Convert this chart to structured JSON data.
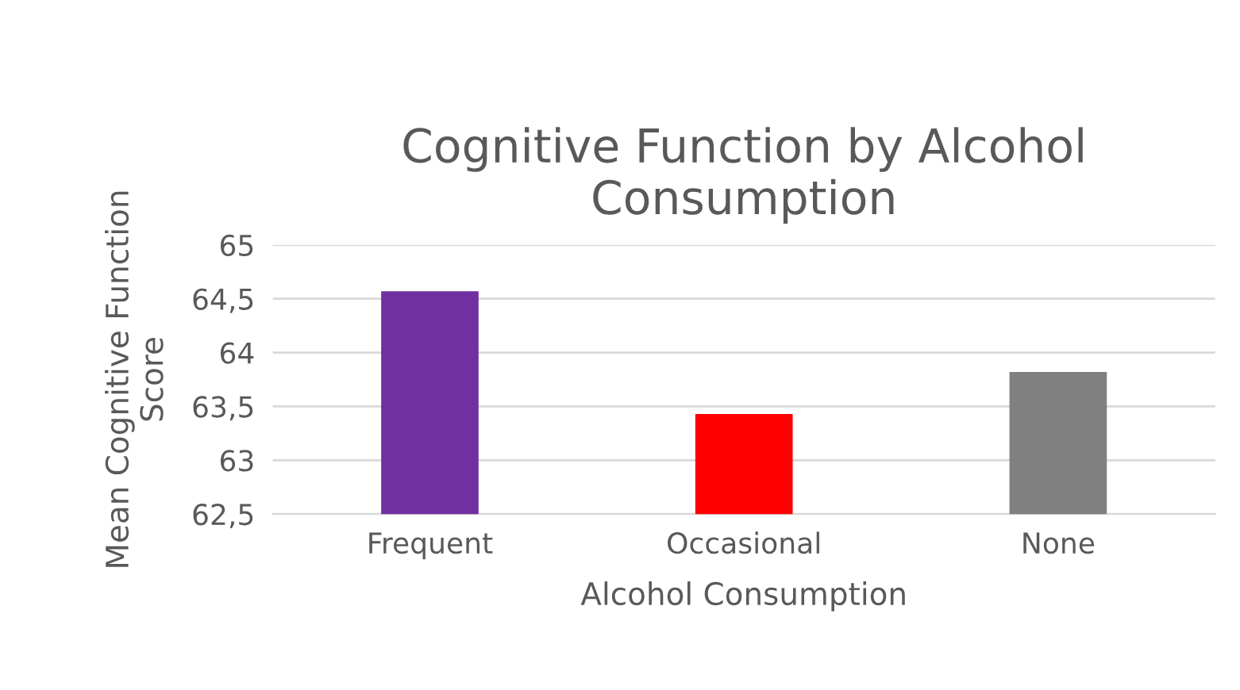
{
  "chart_data": {
    "type": "bar",
    "title": "Cognitive Function by Alcohol\nConsumption",
    "xlabel": "Alcohol Consumption",
    "ylabel": "Mean Cognitive Function\nScore",
    "categories": [
      "Frequent",
      "Occasional",
      "None"
    ],
    "values": [
      64.57,
      63.43,
      63.82
    ],
    "colors": [
      "#7030a0",
      "#ff0000",
      "#808080"
    ],
    "ylim": [
      62.5,
      65
    ],
    "yticks": [
      {
        "value": 62.5,
        "label": "62,5"
      },
      {
        "value": 63,
        "label": "63"
      },
      {
        "value": 63.5,
        "label": "63,5"
      },
      {
        "value": 64,
        "label": "64"
      },
      {
        "value": 64.5,
        "label": "64,5"
      },
      {
        "value": 65,
        "label": "65"
      }
    ],
    "grid": "y",
    "legend": false
  }
}
